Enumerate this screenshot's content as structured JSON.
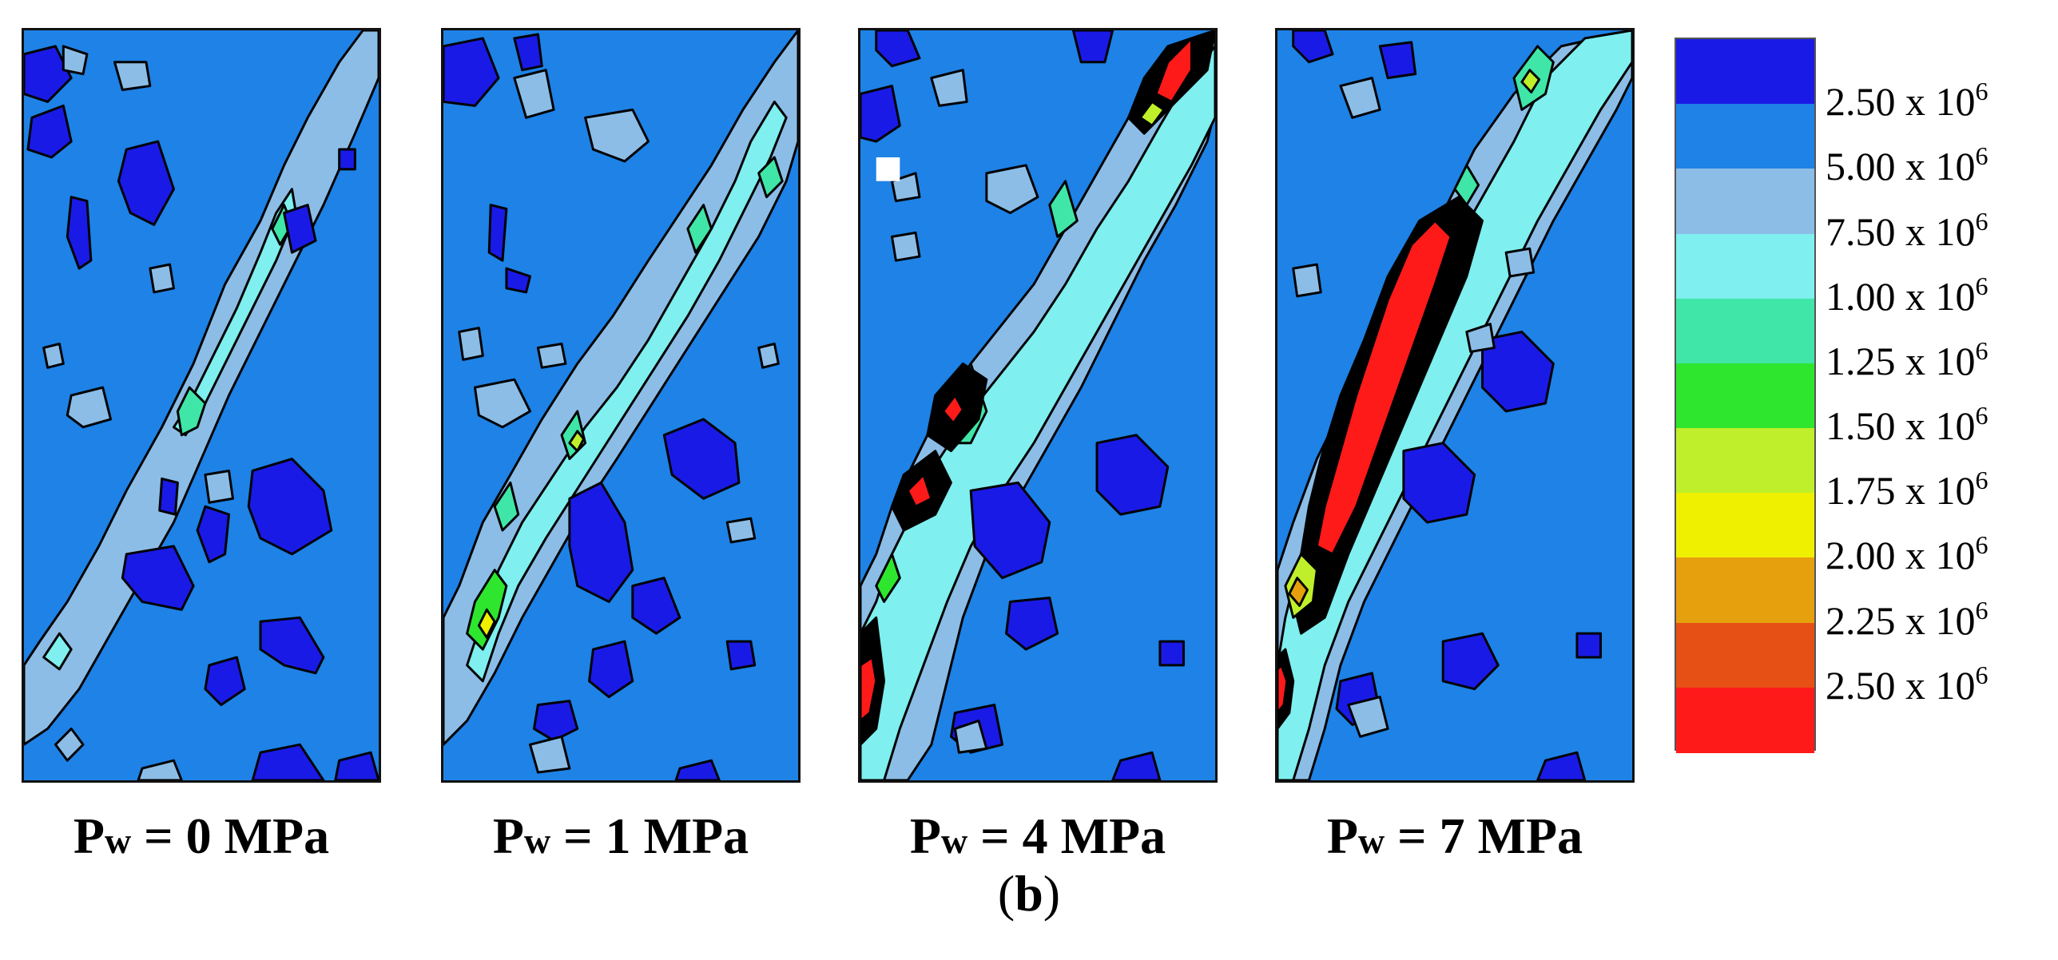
{
  "chart_data": {
    "type": "heatmap",
    "panels": [
      {
        "prefix": "P",
        "sub": "w",
        "value": "0",
        "unit": "MPa"
      },
      {
        "prefix": "P",
        "sub": "w",
        "value": "1",
        "unit": "MPa"
      },
      {
        "prefix": "P",
        "sub": "w",
        "value": "4",
        "unit": "MPa"
      },
      {
        "prefix": "P",
        "sub": "w",
        "value": "7",
        "unit": "MPa"
      }
    ],
    "legend": {
      "colors": [
        "#1a1ae6",
        "#1e82e6",
        "#8cbde6",
        "#7fefef",
        "#40e6a8",
        "#2ee62e",
        "#bfef2a",
        "#efef00",
        "#e6a00e",
        "#e65014",
        "#ff1a1a"
      ],
      "ticks": [
        {
          "base": "2.50 x 10",
          "exp": "6"
        },
        {
          "base": "5.00 x 10",
          "exp": "6"
        },
        {
          "base": "7.50 x 10",
          "exp": "6"
        },
        {
          "base": "1.00 x 10",
          "exp": "6"
        },
        {
          "base": "1.25 x 10",
          "exp": "6"
        },
        {
          "base": "1.50 x 10",
          "exp": "6"
        },
        {
          "base": "1.75 x 10",
          "exp": "6"
        },
        {
          "base": "2.00 x 10",
          "exp": "6"
        },
        {
          "base": "2.25 x 10",
          "exp": "6"
        },
        {
          "base": "2.50 x 10",
          "exp": "6"
        }
      ]
    }
  },
  "caption": {
    "open": "(",
    "letter": "b",
    "close": ")"
  }
}
